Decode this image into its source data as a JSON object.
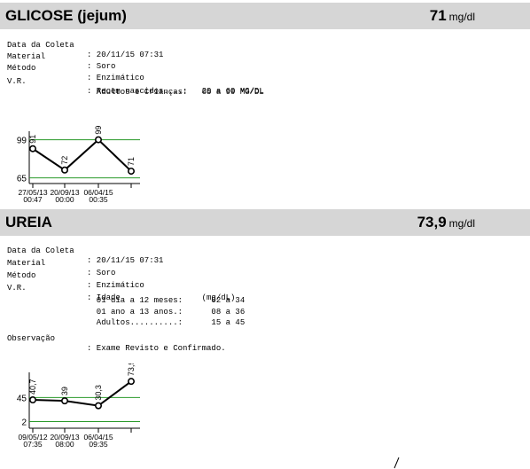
{
  "glicose": {
    "name": "GLICOSE (jejum)",
    "value": "71",
    "unit": "mg/dl",
    "fields": {
      "coleta_label": "Data da Coleta",
      "coleta_value": ": 20/11/15 07:31",
      "material_label": "Material",
      "material_value": ": Soro",
      "metodo_label": "Método",
      "metodo_value": ": Enzimático",
      "vr_label": "V.R.",
      "vr_line1": ": Recem nascidos....:   20 a 60 MG/DL",
      "vr_line2": "  Adultos e Crianças:   65 a 99 MG/DL"
    },
    "chart_data": {
      "type": "line",
      "categories": [
        "27/05/13 00:47",
        "20/09/13 00:00",
        "06/04/15 00:35",
        ""
      ],
      "values": [
        91,
        72,
        99,
        71
      ],
      "point_labels": [
        "91",
        "72",
        "99",
        "71"
      ],
      "ref_lines": [
        99,
        65
      ],
      "ytick_labels": [
        "99",
        "65"
      ],
      "ylim": [
        60,
        105
      ],
      "xtick_dates": [
        "27/05/13",
        "20/09/13",
        "06/04/15"
      ],
      "xtick_times": [
        "00:47",
        "00:00",
        "00:35"
      ]
    }
  },
  "ureia": {
    "name": "UREIA",
    "value": "73,9",
    "unit": "mg/dl",
    "fields": {
      "coleta_label": "Data da Coleta",
      "coleta_value": ": 20/11/15 07:31",
      "material_label": "Material",
      "material_value": ": Soro",
      "metodo_label": "Método",
      "metodo_value": ": Enzimático",
      "vr_label": "V.R.",
      "vr_head": ": Idade                 (mg/dL)",
      "vr_line1": "  01 dia a 12 meses:      02 a 34",
      "vr_line2": "  01 ano a 13 anos.:      08 a 36",
      "vr_line3": "  Adultos..........:      15 a 45",
      "obs_label": "Observação",
      "obs_value": ": Exame Revisto e Confirmado."
    },
    "chart_data": {
      "type": "line",
      "categories": [
        "09/05/12 07:35",
        "20/09/13 08:00",
        "06/04/15 09:35",
        ""
      ],
      "values": [
        40.7,
        39,
        30.3,
        73.9
      ],
      "point_labels": [
        "40,7",
        "39",
        "30,3",
        "73,9"
      ],
      "ref_lines": [
        45,
        2
      ],
      "ytick_labels": [
        "45",
        "2"
      ],
      "ylim": [
        -10,
        90
      ],
      "xtick_dates": [
        "09/05/12",
        "20/09/13",
        "06/04/15"
      ],
      "xtick_times": [
        "07:35",
        "08:00",
        "09:35"
      ]
    }
  },
  "colors": {
    "header_bg": "#d6d6d6",
    "ref_line": "#2a9a2a",
    "series": "#000000"
  }
}
